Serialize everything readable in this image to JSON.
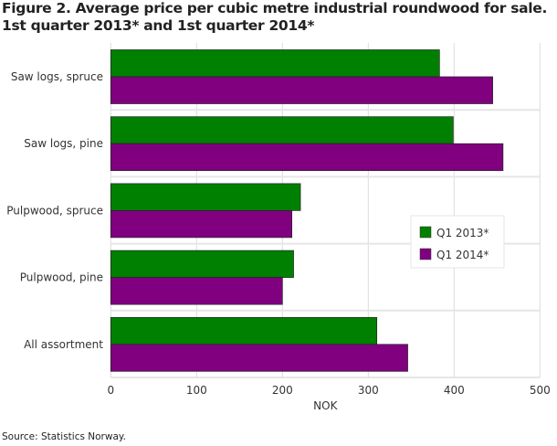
{
  "chart_data": {
    "type": "bar",
    "orientation": "horizontal",
    "title": "Figure 2. Average price per cubic metre industrial roundwood for sale.",
    "subtitle": "1st quarter 2013* and 1st quarter 2014*",
    "categories": [
      "Saw logs, spruce",
      "Saw logs, pine",
      "Pulpwood, spruce",
      "Pulpwood, pine",
      "All assortment"
    ],
    "series": [
      {
        "name": "Q1 2013*",
        "color": "#008000",
        "values": [
          383,
          399,
          221,
          213,
          310
        ]
      },
      {
        "name": "Q1 2014*",
        "color": "#800080",
        "values": [
          445,
          457,
          211,
          200,
          346
        ]
      }
    ],
    "xlabel": "NOK",
    "ylabel": "",
    "xlim": [
      0,
      500
    ],
    "xticks": [
      "0",
      "100",
      "200",
      "300",
      "400",
      "500"
    ],
    "grid": true,
    "legend": "right",
    "source": "Source: Statistics Norway."
  }
}
